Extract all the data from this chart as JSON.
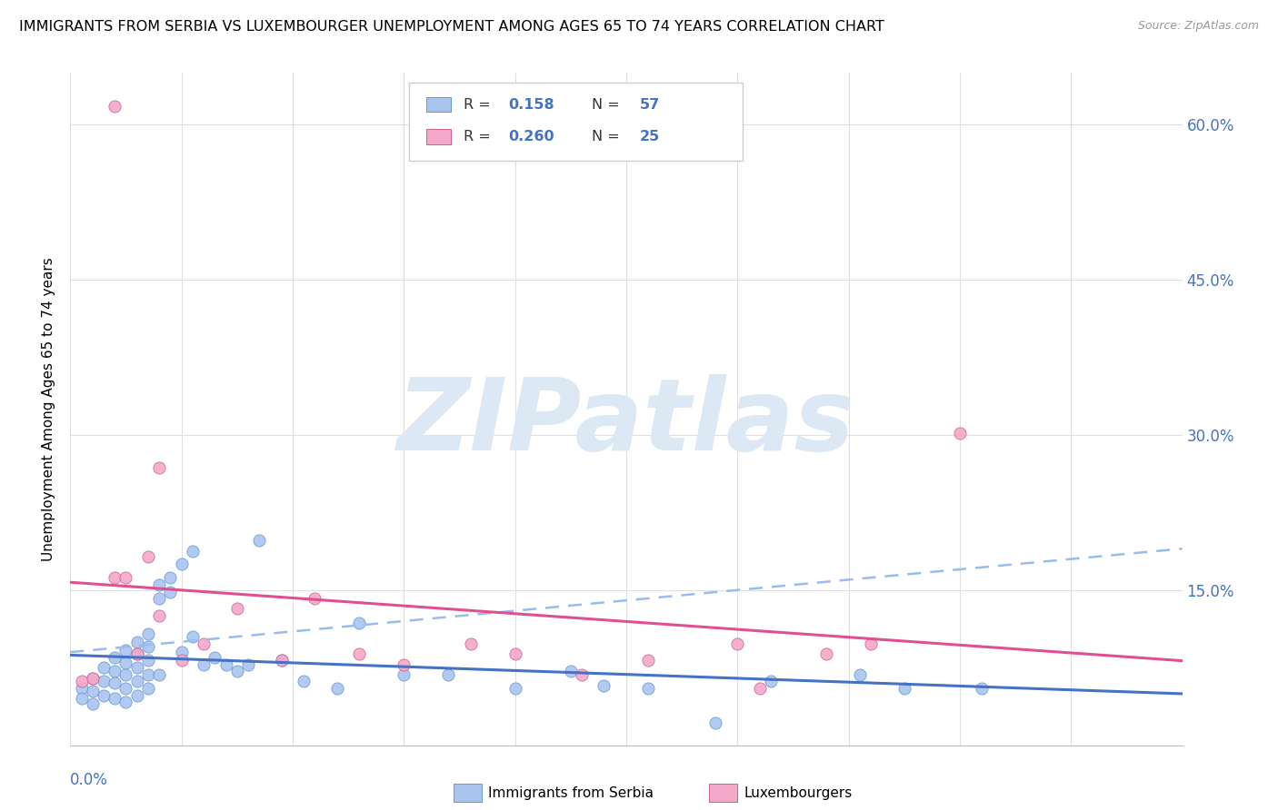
{
  "title": "IMMIGRANTS FROM SERBIA VS LUXEMBOURGER UNEMPLOYMENT AMONG AGES 65 TO 74 YEARS CORRELATION CHART",
  "source": "Source: ZipAtlas.com",
  "ylabel": "Unemployment Among Ages 65 to 74 years",
  "xlim": [
    0.0,
    0.1
  ],
  "ylim": [
    0.0,
    0.65
  ],
  "right_yticks": [
    0.15,
    0.3,
    0.45,
    0.6
  ],
  "right_yticklabels": [
    "15.0%",
    "30.0%",
    "45.0%",
    "60.0%"
  ],
  "serbia_color": "#aac4f0",
  "lux_color": "#f4a8c8",
  "serbia_edge_color": "#6699cc",
  "lux_edge_color": "#d06090",
  "serbia_trend_color": "#4472c4",
  "lux_trend_color": "#e05090",
  "dashed_line_color": "#99bbee",
  "watermark": "ZIPatlas",
  "watermark_color": "#dde8f5",
  "grid_color": "#e0e0e0",
  "serbia_x": [
    0.001,
    0.001,
    0.002,
    0.002,
    0.002,
    0.003,
    0.003,
    0.003,
    0.004,
    0.004,
    0.004,
    0.004,
    0.005,
    0.005,
    0.005,
    0.005,
    0.005,
    0.006,
    0.006,
    0.006,
    0.006,
    0.006,
    0.007,
    0.007,
    0.007,
    0.007,
    0.007,
    0.008,
    0.008,
    0.008,
    0.009,
    0.009,
    0.01,
    0.01,
    0.011,
    0.011,
    0.012,
    0.013,
    0.014,
    0.015,
    0.016,
    0.017,
    0.019,
    0.021,
    0.024,
    0.026,
    0.03,
    0.034,
    0.04,
    0.045,
    0.048,
    0.052,
    0.058,
    0.063,
    0.071,
    0.075,
    0.082
  ],
  "serbia_y": [
    0.055,
    0.045,
    0.065,
    0.052,
    0.04,
    0.075,
    0.062,
    0.048,
    0.085,
    0.072,
    0.06,
    0.045,
    0.092,
    0.08,
    0.068,
    0.055,
    0.042,
    0.1,
    0.088,
    0.075,
    0.062,
    0.048,
    0.108,
    0.095,
    0.082,
    0.068,
    0.055,
    0.155,
    0.142,
    0.068,
    0.162,
    0.148,
    0.175,
    0.09,
    0.188,
    0.105,
    0.078,
    0.085,
    0.078,
    0.072,
    0.078,
    0.198,
    0.082,
    0.062,
    0.055,
    0.118,
    0.068,
    0.068,
    0.055,
    0.072,
    0.058,
    0.055,
    0.022,
    0.062,
    0.068,
    0.055,
    0.055
  ],
  "lux_x": [
    0.001,
    0.002,
    0.004,
    0.004,
    0.005,
    0.006,
    0.007,
    0.008,
    0.008,
    0.01,
    0.012,
    0.015,
    0.019,
    0.022,
    0.026,
    0.03,
    0.036,
    0.04,
    0.046,
    0.052,
    0.06,
    0.062,
    0.068,
    0.072,
    0.08
  ],
  "lux_y": [
    0.062,
    0.065,
    0.618,
    0.162,
    0.162,
    0.088,
    0.182,
    0.125,
    0.268,
    0.082,
    0.098,
    0.132,
    0.082,
    0.142,
    0.088,
    0.078,
    0.098,
    0.088,
    0.068,
    0.082,
    0.098,
    0.055,
    0.088,
    0.098,
    0.302
  ]
}
